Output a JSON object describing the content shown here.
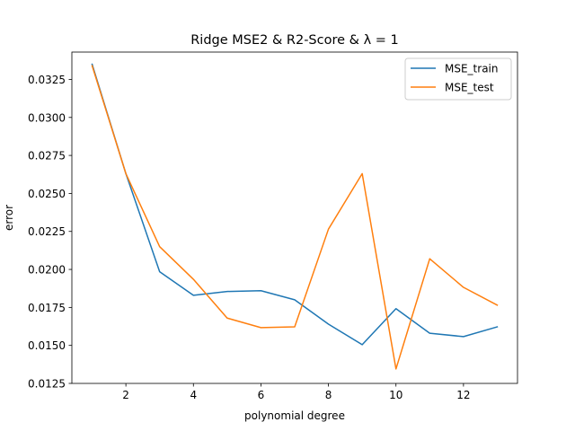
{
  "chart_data": {
    "type": "line",
    "title": "Ridge MSE2 & R2-Score &  λ = 1",
    "xlabel": "polynomial degree",
    "ylabel": "error",
    "xlim": [
      0.4,
      13.6
    ],
    "ylim": [
      0.0125,
      0.0343
    ],
    "xticks": [
      2,
      4,
      6,
      8,
      10,
      12
    ],
    "xtick_labels": [
      "2",
      "4",
      "6",
      "8",
      "10",
      "12"
    ],
    "yticks": [
      0.0125,
      0.015,
      0.0175,
      0.02,
      0.0225,
      0.025,
      0.0275,
      0.03,
      0.0325
    ],
    "ytick_labels": [
      "0.0125",
      "0.0150",
      "0.0175",
      "0.0200",
      "0.0225",
      "0.0250",
      "0.0275",
      "0.0300",
      "0.0325"
    ],
    "x": [
      1,
      2,
      3,
      4,
      5,
      6,
      7,
      8,
      9,
      10,
      11,
      12,
      13
    ],
    "legend_position": "top-right",
    "grid": false,
    "series": [
      {
        "name": "MSE_train",
        "color": "#1f77b4",
        "values": [
          0.0335,
          0.0263,
          0.01985,
          0.0183,
          0.01855,
          0.0186,
          0.018,
          0.0164,
          0.01505,
          0.01742,
          0.0158,
          0.01558,
          0.01622
        ]
      },
      {
        "name": "MSE_test",
        "color": "#ff7f0e",
        "values": [
          0.0334,
          0.0263,
          0.0215,
          0.01935,
          0.0168,
          0.01617,
          0.01622,
          0.02265,
          0.0263,
          0.01345,
          0.0207,
          0.01882,
          0.01765
        ]
      }
    ]
  }
}
